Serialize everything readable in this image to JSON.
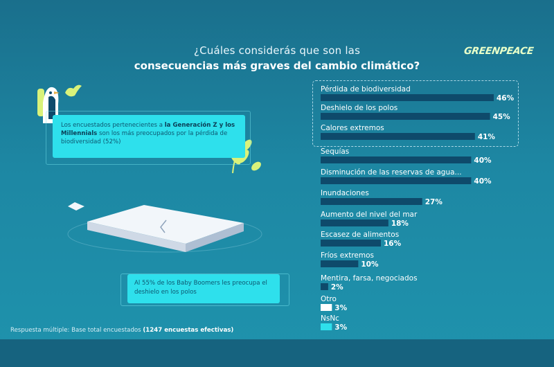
{
  "header": {
    "title_line1": "¿Cuáles considerás que son las",
    "title_line2": "consecuencias más graves del cambio climático?",
    "logo": "GREENPEACE"
  },
  "callouts": [
    {
      "pre": "Los encuestados pertenecientes a ",
      "bold": "la Generación Z y los Millennials",
      "post": " son los más preocupados por la pérdida de biodiversidad (52%)"
    },
    {
      "text": "Al 55% de los Baby Boomers les preocupa el deshielo en los polos"
    }
  ],
  "footnote": {
    "text": "Respuesta múltiple: Base total encuestados ",
    "bold": "(1247 encuestas efectivas)"
  },
  "chart_data": {
    "type": "bar",
    "orientation": "horizontal",
    "title": "¿Cuáles considerás que son las consecuencias más graves del cambio climático?",
    "xlim": [
      0,
      46
    ],
    "categories": [
      "Pérdida de biodiversidad",
      "Deshielo de los polos",
      "Calores extremos",
      "Sequías",
      "Disminución de las reservas de agua...",
      "Inundaciones",
      "Aumento del nivel del mar",
      "Escasez de alimentos",
      "Fríos extremos",
      "Mentira, farsa, negociados",
      "Otro",
      "NsNc"
    ],
    "values": [
      46,
      45,
      41,
      40,
      40,
      27,
      18,
      16,
      10,
      2,
      3,
      3
    ],
    "value_labels": [
      "46%",
      "45%",
      "41%",
      "40%",
      "40%",
      "27%",
      "18%",
      "16%",
      "10%",
      "2%",
      "3%",
      "3%"
    ],
    "bar_colors": [
      "#0e4a6b",
      "#0e4a6b",
      "#0e4a6b",
      "#0e4a6b",
      "#0e4a6b",
      "#0e4a6b",
      "#0e4a6b",
      "#0e4a6b",
      "#0e4a6b",
      "#0e4a6b",
      "#ffffff",
      "#2ee0ec"
    ],
    "highlighted_top": 3,
    "grid": false,
    "legend": "none"
  },
  "colors": {
    "background": "#1d87a3",
    "bar": "#0e4a6b",
    "accent": "#2ee0ec",
    "text": "#ffffff"
  }
}
